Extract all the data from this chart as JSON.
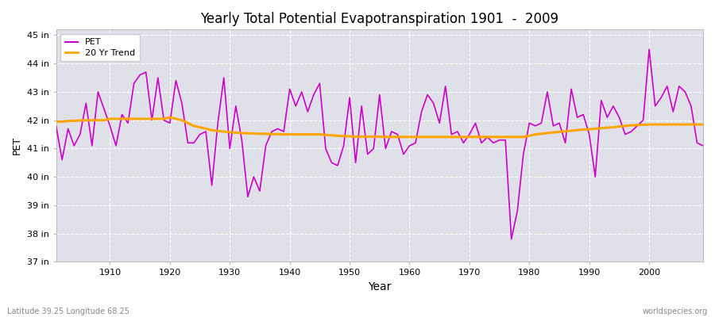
{
  "title": "Yearly Total Potential Evapotranspiration 1901  -  2009",
  "xlabel": "Year",
  "ylabel": "PET",
  "subtitle_left": "Latitude 39.25 Longitude 68.25",
  "subtitle_right": "worldspecies.org",
  "ylim": [
    37,
    45.2
  ],
  "xlim": [
    1901,
    2009
  ],
  "yticks": [
    37,
    38,
    39,
    40,
    41,
    42,
    43,
    44,
    45
  ],
  "ytick_labels": [
    "37 in",
    "38 in",
    "39 in",
    "40 in",
    "41 in",
    "42 in",
    "43 in",
    "44 in",
    "45 in"
  ],
  "xticks": [
    1910,
    1920,
    1930,
    1940,
    1950,
    1960,
    1970,
    1980,
    1990,
    2000
  ],
  "pet_color": "#CC00CC",
  "trend_color": "#FFA500",
  "fig_bg_color": "#FFFFFF",
  "plot_bg_color": "#E0E0E8",
  "legend_labels": [
    "PET",
    "20 Yr Trend"
  ],
  "years": [
    1901,
    1902,
    1903,
    1904,
    1905,
    1906,
    1907,
    1908,
    1909,
    1910,
    1911,
    1912,
    1913,
    1914,
    1915,
    1916,
    1917,
    1918,
    1919,
    1920,
    1921,
    1922,
    1923,
    1924,
    1925,
    1926,
    1927,
    1928,
    1929,
    1930,
    1931,
    1932,
    1933,
    1934,
    1935,
    1936,
    1937,
    1938,
    1939,
    1940,
    1941,
    1942,
    1943,
    1944,
    1945,
    1946,
    1947,
    1948,
    1949,
    1950,
    1951,
    1952,
    1953,
    1954,
    1955,
    1956,
    1957,
    1958,
    1959,
    1960,
    1961,
    1962,
    1963,
    1964,
    1965,
    1966,
    1967,
    1968,
    1969,
    1970,
    1971,
    1972,
    1973,
    1974,
    1975,
    1976,
    1977,
    1978,
    1979,
    1980,
    1981,
    1982,
    1983,
    1984,
    1985,
    1986,
    1987,
    1988,
    1989,
    1990,
    1991,
    1992,
    1993,
    1994,
    1995,
    1996,
    1997,
    1998,
    1999,
    2000,
    2001,
    2002,
    2003,
    2004,
    2005,
    2006,
    2007,
    2008,
    2009
  ],
  "pet_values": [
    41.8,
    40.6,
    41.7,
    41.1,
    41.5,
    42.6,
    41.1,
    43.0,
    42.4,
    41.8,
    41.1,
    42.2,
    41.9,
    43.3,
    43.6,
    43.7,
    42.0,
    43.5,
    42.0,
    41.9,
    43.4,
    42.6,
    41.2,
    41.2,
    41.5,
    41.6,
    39.7,
    41.9,
    43.5,
    41.0,
    42.5,
    41.3,
    39.3,
    40.0,
    39.5,
    41.1,
    41.6,
    41.7,
    41.6,
    43.1,
    42.5,
    43.0,
    42.3,
    42.9,
    43.3,
    41.0,
    40.5,
    40.4,
    41.1,
    42.8,
    40.5,
    42.5,
    40.8,
    41.0,
    42.9,
    41.0,
    41.6,
    41.5,
    40.8,
    41.1,
    41.2,
    42.3,
    42.9,
    42.6,
    41.9,
    43.2,
    41.5,
    41.6,
    41.2,
    41.5,
    41.9,
    41.2,
    41.4,
    41.2,
    41.3,
    41.3,
    37.8,
    38.8,
    40.8,
    41.9,
    41.8,
    41.9,
    43.0,
    41.8,
    41.9,
    41.2,
    43.1,
    42.1,
    42.2,
    41.5,
    40.0,
    42.7,
    42.1,
    42.5,
    42.1,
    41.5,
    41.6,
    41.8,
    42.0,
    44.5,
    42.5,
    42.8,
    43.2,
    42.3,
    43.2,
    43.0,
    42.5,
    41.2,
    41.1
  ],
  "trend_values": [
    41.95,
    41.95,
    41.97,
    41.98,
    41.99,
    42.0,
    42.0,
    42.0,
    42.0,
    42.05,
    42.05,
    42.05,
    42.05,
    42.05,
    42.05,
    42.05,
    42.05,
    42.05,
    42.05,
    42.1,
    42.05,
    42.0,
    41.9,
    41.8,
    41.75,
    41.7,
    41.65,
    41.62,
    41.6,
    41.58,
    41.56,
    41.55,
    41.54,
    41.53,
    41.52,
    41.52,
    41.51,
    41.51,
    41.5,
    41.5,
    41.5,
    41.5,
    41.5,
    41.5,
    41.5,
    41.48,
    41.47,
    41.45,
    41.44,
    41.43,
    41.42,
    41.42,
    41.42,
    41.42,
    41.42,
    41.41,
    41.41,
    41.41,
    41.41,
    41.41,
    41.41,
    41.41,
    41.41,
    41.41,
    41.41,
    41.41,
    41.41,
    41.41,
    41.41,
    41.41,
    41.41,
    41.41,
    41.41,
    41.41,
    41.41,
    41.41,
    41.41,
    41.41,
    41.41,
    41.45,
    41.5,
    41.52,
    41.55,
    41.57,
    41.59,
    41.61,
    41.63,
    41.65,
    41.67,
    41.68,
    41.7,
    41.72,
    41.74,
    41.75,
    41.78,
    41.8,
    41.82,
    41.83,
    41.84,
    41.85,
    41.85,
    41.85,
    41.85,
    41.85,
    41.85,
    41.85,
    41.85,
    41.85,
    41.85
  ]
}
